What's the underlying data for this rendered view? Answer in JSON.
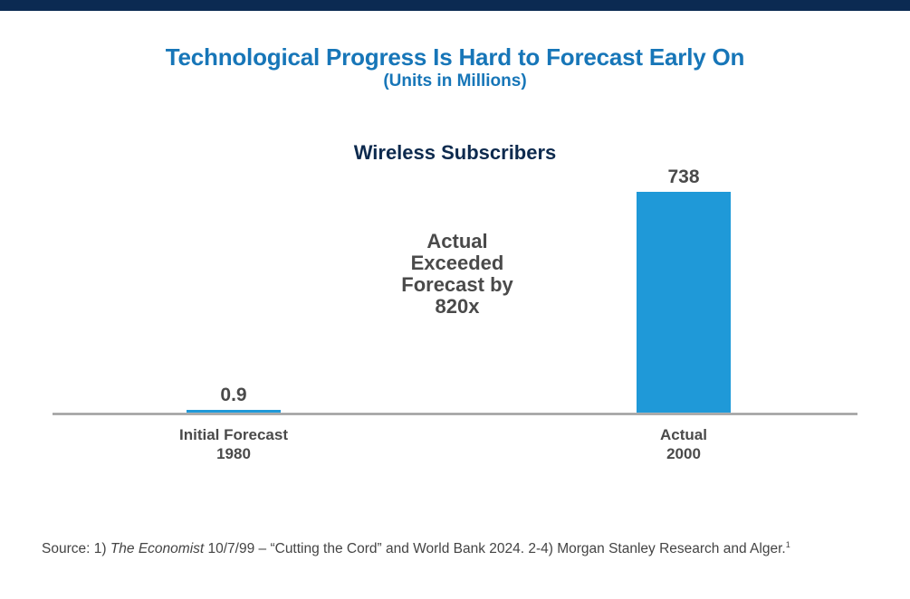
{
  "header": {
    "title": "Technological Progress Is Hard to Forecast Early On",
    "subtitle": "(Units in Millions)"
  },
  "colors": {
    "top_bar": "#0b2a52",
    "title": "#1776b8",
    "bar": "#1f99d8",
    "axis": "#9e9e9e",
    "text_dark": "#4a4a4a"
  },
  "chart_data": {
    "type": "bar",
    "title": "Wireless Subscribers",
    "categories": [
      [
        "Initial Forecast",
        "1980"
      ],
      [
        "Actual",
        "2000"
      ]
    ],
    "values": [
      0.9,
      738
    ],
    "data_labels": [
      "0.9",
      "738"
    ],
    "xlabel": "",
    "ylabel": "",
    "ylim": [
      0,
      738
    ],
    "grid": false,
    "legend": "none",
    "annotation": [
      "Actual",
      "Exceeded",
      "Forecast by",
      "820x"
    ]
  },
  "footer": {
    "source_prefix": "Source: 1) ",
    "source_italic": "The Economist",
    "source_rest": " 10/7/99 – “Cutting the Cord” and World Bank 2024. 2-4) Morgan Stanley Research and Alger.",
    "source_sup": "1"
  }
}
